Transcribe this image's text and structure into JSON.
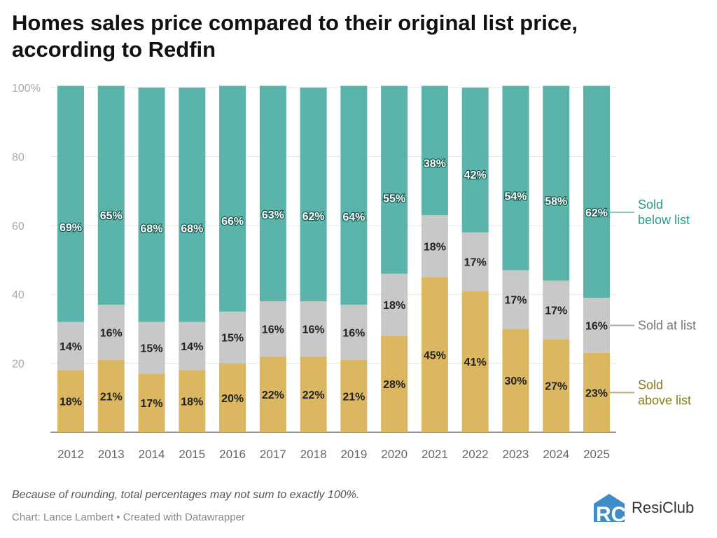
{
  "title": "Homes sales price compared to their original list price, according to Redfin",
  "note": "Because of rounding, total percentages may not sum to exactly 100%.",
  "credit": "Chart: Lance Lambert • Created with Datawrapper",
  "logo_text": "ResiClub",
  "chart_data": {
    "type": "bar",
    "stacked": true,
    "categories": [
      "2012",
      "2013",
      "2014",
      "2015",
      "2016",
      "2017",
      "2018",
      "2019",
      "2020",
      "2021",
      "2022",
      "2023",
      "2024",
      "2025"
    ],
    "series": [
      {
        "name": "Sold above list",
        "color": "#dcb762",
        "label_color": "#8a7a1e",
        "values": [
          18,
          21,
          17,
          18,
          20,
          22,
          22,
          21,
          28,
          45,
          41,
          30,
          27,
          23
        ]
      },
      {
        "name": "Sold at list",
        "color": "#c8c8c8",
        "label_color": "#777777",
        "values": [
          14,
          16,
          15,
          14,
          15,
          16,
          16,
          16,
          18,
          18,
          17,
          17,
          17,
          16
        ]
      },
      {
        "name": "Sold below list",
        "color": "#5ab4aa",
        "label_color": "#2a9a88",
        "values": [
          69,
          65,
          68,
          68,
          66,
          63,
          62,
          64,
          55,
          38,
          42,
          54,
          58,
          62
        ]
      }
    ],
    "ylim": [
      0,
      100
    ],
    "yticks": [
      20,
      40,
      60,
      80,
      100
    ],
    "ytick_labels": [
      "20",
      "40",
      "60",
      "80",
      "100%"
    ],
    "grid": true,
    "legend": "right, direct labels on last bar",
    "value_suffix": "%"
  }
}
